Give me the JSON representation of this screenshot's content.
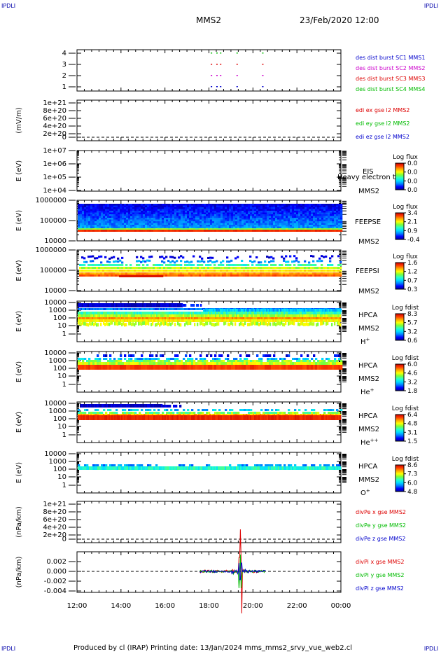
{
  "corners": {
    "tl": "IPDLI",
    "tr": "IPDLI",
    "bl": "IPDLI",
    "br": "IPDLI"
  },
  "header": {
    "sc": "MMS2",
    "date": "23/Feb/2020 12:00"
  },
  "footer": {
    "text": "Produced by cl (IRAP)   Printing date: 13/Jan/2024   mms_mms2_srvy_vue_web2.cl"
  },
  "colors": {
    "red": "#dd0000",
    "green": "#00bb00",
    "blue": "#0000cc",
    "magenta": "#cc00cc"
  },
  "chart_data": {
    "type": "multi-panel time series / spectrogram",
    "x_ticks": [
      "12:00",
      "14:00",
      "16:00",
      "18:00",
      "20:00",
      "22:00",
      "00:00"
    ],
    "panels": [
      {
        "id": "burst",
        "type": "scatter",
        "ylabel": "",
        "ticks": [
          "4",
          "3",
          "2",
          "1"
        ],
        "legend": [
          {
            "text": "des dist burst SC1 MMS1",
            "color": "#0000cc"
          },
          {
            "text": "des dist burst SC2 MMS2",
            "color": "#cc00cc"
          },
          {
            "text": "des dist burst SC3 MMS3",
            "color": "#dd0000"
          },
          {
            "text": "des dist burst SC4 MMS4",
            "color": "#00bb00"
          }
        ],
        "series": [
          {
            "name": "SC1",
            "y": 1,
            "x": [
              "18:05",
              "18:20",
              "18:30",
              "19:15",
              "20:25"
            ]
          },
          {
            "name": "SC2",
            "y": 2,
            "x": [
              "18:05",
              "18:20",
              "18:30",
              "19:15",
              "20:25"
            ]
          },
          {
            "name": "SC3",
            "y": 3,
            "x": [
              "18:05",
              "18:20",
              "18:30",
              "19:15",
              "20:25"
            ]
          },
          {
            "name": "SC4",
            "y": 4,
            "x": [
              "18:05",
              "18:20",
              "18:30",
              "19:15",
              "20:25"
            ]
          }
        ]
      },
      {
        "id": "edi",
        "type": "line",
        "ylabel": "(mV/m)",
        "ticks": [
          "1e+21",
          "8e+20",
          "6e+20",
          "4e+20",
          "2e+20",
          "0"
        ],
        "legend": [
          {
            "text": "edi ex gse l2 MMS2",
            "color": "#dd0000"
          },
          {
            "text": "edi ey gse l2 MMS2",
            "color": "#00bb00"
          },
          {
            "text": "edi ez gse l2 MMS2",
            "color": "#0000cc"
          }
        ]
      },
      {
        "id": "eis",
        "type": "heatmap",
        "ylabel": "E (eV)",
        "ticks": [
          "1e+07",
          "1e+06",
          "1e+05",
          "1e+04"
        ],
        "labels": [
          "EIS",
          "Heavy electron to",
          "MMS2"
        ],
        "cb_title": "Log flux",
        "cb_ticks": [
          "0.0",
          "0.0",
          "0.0",
          "0.0"
        ]
      },
      {
        "id": "feepse",
        "type": "heatmap",
        "ylabel": "E (eV)",
        "ticks": [
          "1000000",
          "100000",
          "10000"
        ],
        "labels": [
          "FEEPSE",
          "MMS2"
        ],
        "cb_title": "Log flux",
        "cb_ticks": [
          "3.4",
          "2.1",
          "0.9",
          "-0.4"
        ]
      },
      {
        "id": "feepsi",
        "type": "heatmap",
        "ylabel": "E (eV)",
        "ticks": [
          "1000000",
          "100000",
          "10000"
        ],
        "labels": [
          "FEEPSI",
          "MMS2"
        ],
        "cb_title": "Log flux",
        "cb_ticks": [
          "1.6",
          "1.2",
          "0.7",
          "0.3"
        ]
      },
      {
        "id": "hpca_h",
        "type": "heatmap",
        "ylabel": "E (eV)",
        "ticks": [
          "10000",
          "1000",
          "100",
          "10",
          "1"
        ],
        "labels": [
          "HPCA",
          "MMS2",
          "H+"
        ],
        "cb_title": "Log fdist",
        "cb_ticks": [
          "8.3",
          "5.7",
          "3.2",
          "0.6"
        ]
      },
      {
        "id": "hpca_he",
        "type": "heatmap",
        "ylabel": "E (eV)",
        "ticks": [
          "10000",
          "1000",
          "100",
          "10",
          "1"
        ],
        "labels": [
          "HPCA",
          "MMS2",
          "He+"
        ],
        "cb_title": "Log fdist",
        "cb_ticks": [
          "6.0",
          "4.6",
          "3.2",
          "1.8"
        ]
      },
      {
        "id": "hpca_hepp",
        "type": "heatmap",
        "ylabel": "E (eV)",
        "ticks": [
          "10000",
          "1000",
          "100",
          "10",
          "1"
        ],
        "labels": [
          "HPCA",
          "MMS2",
          "He++"
        ],
        "cb_title": "Log fdist",
        "cb_ticks": [
          "6.4",
          "4.8",
          "3.1",
          "1.5"
        ]
      },
      {
        "id": "hpca_o",
        "type": "heatmap",
        "ylabel": "E (eV)",
        "ticks": [
          "10000",
          "1000",
          "100",
          "10",
          "1"
        ],
        "labels": [
          "HPCA",
          "MMS2",
          "O+"
        ],
        "cb_title": "Log fdist",
        "cb_ticks": [
          "8.6",
          "7.3",
          "6.0",
          "4.8"
        ]
      },
      {
        "id": "divpe",
        "type": "line",
        "ylabel": "(nPa/km)",
        "ticks": [
          "1e+21",
          "8e+20",
          "6e+20",
          "4e+20",
          "2e+20",
          "0"
        ],
        "legend": [
          {
            "text": "divPe x gse MMS2",
            "color": "#dd0000"
          },
          {
            "text": "divPe y gse MMS2",
            "color": "#00bb00"
          },
          {
            "text": "divPe z gse MMS2",
            "color": "#0000cc"
          }
        ]
      },
      {
        "id": "divpi",
        "type": "line",
        "ylabel": "(nPa/km)",
        "ticks": [
          "0.002",
          "0.000",
          "-0.002",
          "-0.004"
        ],
        "legend": [
          {
            "text": "divPi x gse MMS2",
            "color": "#dd0000"
          },
          {
            "text": "divPi y gse MMS2",
            "color": "#00bb00"
          },
          {
            "text": "divPi z gse MMS2",
            "color": "#0000cc"
          }
        ]
      }
    ]
  }
}
